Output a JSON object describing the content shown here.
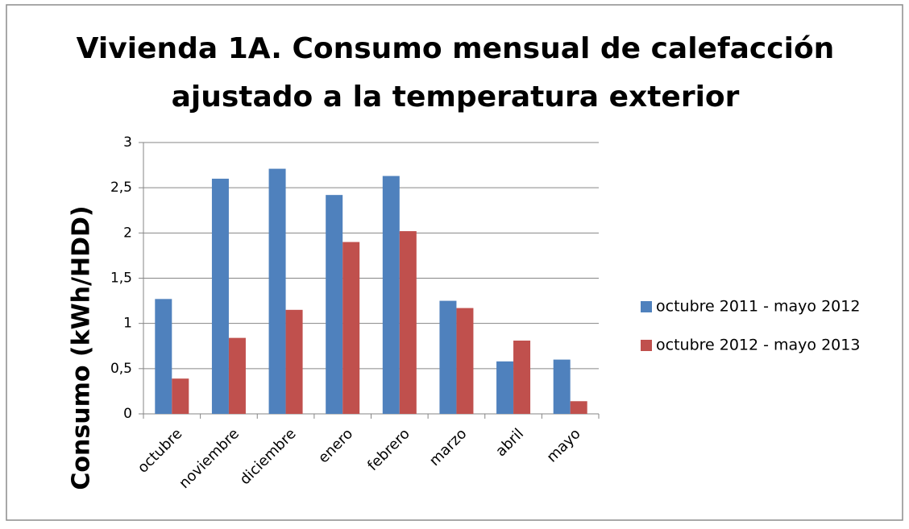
{
  "chart_data": {
    "type": "bar",
    "title": [
      "Vivienda 1A. Consumo mensual de calefacción",
      "ajustado a la temperatura exterior"
    ],
    "y_label": "Consumo (kWh/HDD)",
    "categories": [
      "octubre",
      "noviembre",
      "diciembre",
      "enero",
      "febrero",
      "marzo",
      "abril",
      "mayo"
    ],
    "series": [
      {
        "name": "octubre 2011 - mayo 2012",
        "color": "#4f81bd",
        "values": [
          1.27,
          2.6,
          2.71,
          2.42,
          2.63,
          1.25,
          0.58,
          0.6
        ]
      },
      {
        "name": "octubre 2012 - mayo 2013",
        "color": "#c0504d",
        "values": [
          0.39,
          0.84,
          1.15,
          1.9,
          2.02,
          1.17,
          0.81,
          0.14
        ]
      }
    ],
    "ylim": [
      0,
      3
    ],
    "yticks": [
      0,
      {
        "value": 0.5,
        "label": "0,5"
      },
      1,
      {
        "value": 1.5,
        "label": "1,5"
      },
      2,
      {
        "value": 2.5,
        "label": "2,5"
      },
      3
    ],
    "grid": true,
    "legend": "right"
  }
}
